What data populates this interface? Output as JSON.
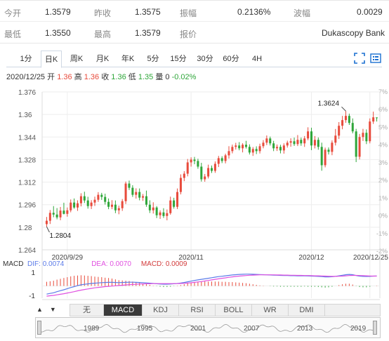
{
  "quote": {
    "rows": [
      [
        {
          "label": "今开",
          "value": "1.3579"
        },
        {
          "label": "昨收",
          "value": "1.3575"
        },
        {
          "label": "振幅",
          "value": "0.2136%"
        },
        {
          "label": "波幅",
          "value": "0.0029"
        }
      ],
      [
        {
          "label": "最低",
          "value": "1.3550"
        },
        {
          "label": "最高",
          "value": "1.3579"
        },
        {
          "label": "报价",
          "value": "Dukascopy Bank"
        }
      ]
    ]
  },
  "period_tabs": [
    "1分",
    "日K",
    "周K",
    "月K",
    "年K",
    "5分",
    "15分",
    "30分",
    "60分",
    "4H"
  ],
  "active_period": "日K",
  "icons": [
    "fullscreen-icon",
    "settings-icon"
  ],
  "info_line": {
    "date": "2020/12/25",
    "open_label": "开",
    "open": "1.36",
    "high_label": "高",
    "high": "1.36",
    "close_label": "收",
    "close": "1.36",
    "low_label": "低",
    "low": "1.35",
    "volume_label": "量",
    "volume": "0",
    "change": "-0.02%"
  },
  "macd_header": {
    "name": "MACD",
    "dif_label": "DIF:",
    "dif": "0.0074",
    "dea_label": "DEA:",
    "dea": "0.0070",
    "macd_label": "MACD:",
    "macd": "0.0009"
  },
  "indicator_tabs": [
    "无",
    "MACD",
    "KDJ",
    "RSI",
    "BOLL",
    "WR",
    "DMI"
  ],
  "active_indicator": "MACD",
  "navigator_years": [
    "1989",
    "1995",
    "2001",
    "2007",
    "2013",
    "2019"
  ],
  "colors": {
    "up": "#e84b3c",
    "down": "#2fa63a",
    "dif": "#5b7be8",
    "dea": "#e050e0",
    "accent": "#1a6fd1"
  },
  "chart_data": [
    {
      "type": "candlestick",
      "title": "",
      "y_ticks": [
        "1.376",
        "1.36",
        "1.344",
        "1.328",
        "1.312",
        "1.296",
        "1.28",
        "1.264"
      ],
      "ylim": [
        1.264,
        1.376
      ],
      "right_axis_ticks": [
        "7%",
        "6%",
        "5%",
        "4%",
        "3%",
        "2%",
        "1%",
        "0%",
        "-1%",
        "-2%"
      ],
      "x_ticks": [
        "2020/9/29",
        "2020/11",
        "2020/12",
        "2020/12/25"
      ],
      "x_tick_index": [
        6,
        42,
        77,
        94
      ],
      "annotations": [
        {
          "text": "1.2804",
          "index": 0,
          "price": 1.2804
        },
        {
          "text": "1.3624",
          "index": 87,
          "price": 1.3624
        }
      ],
      "grid": true,
      "candles": [
        [
          1.2822,
          1.2873,
          1.2804,
          1.2846
        ],
        [
          1.2846,
          1.2922,
          1.2823,
          1.2902
        ],
        [
          1.2902,
          1.295,
          1.2871,
          1.289
        ],
        [
          1.289,
          1.2936,
          1.2856,
          1.287
        ],
        [
          1.287,
          1.2944,
          1.285,
          1.2918
        ],
        [
          1.2918,
          1.2974,
          1.2891,
          1.2895
        ],
        [
          1.2895,
          1.294,
          1.2875,
          1.292
        ],
        [
          1.292,
          1.2997,
          1.2906,
          1.2975
        ],
        [
          1.2975,
          1.3004,
          1.2931,
          1.294
        ],
        [
          1.294,
          1.2991,
          1.2916,
          1.297
        ],
        [
          1.297,
          1.3041,
          1.2948,
          1.302
        ],
        [
          1.302,
          1.3052,
          1.2972,
          1.299
        ],
        [
          1.299,
          1.3016,
          1.2932,
          1.295
        ],
        [
          1.295,
          1.2992,
          1.2929,
          1.2975
        ],
        [
          1.2975,
          1.3017,
          1.2951,
          1.2995
        ],
        [
          1.2995,
          1.3049,
          1.298,
          1.303
        ],
        [
          1.303,
          1.3044,
          1.2994,
          1.3015
        ],
        [
          1.3015,
          1.3038,
          1.2961,
          1.298
        ],
        [
          1.298,
          1.3004,
          1.2928,
          1.2945
        ],
        [
          1.2945,
          1.2992,
          1.2928,
          1.296
        ],
        [
          1.296,
          1.299,
          1.29,
          1.292
        ],
        [
          1.292,
          1.2953,
          1.2892,
          1.2935
        ],
        [
          1.2935,
          1.3,
          1.2916,
          1.2985
        ],
        [
          1.2985,
          1.3124,
          1.2965,
          1.311
        ],
        [
          1.311,
          1.3131,
          1.3064,
          1.308
        ],
        [
          1.308,
          1.3098,
          1.3015,
          1.303
        ],
        [
          1.303,
          1.3076,
          1.3003,
          1.305
        ],
        [
          1.305,
          1.3075,
          1.2991,
          1.301
        ],
        [
          1.301,
          1.3036,
          1.2987,
          1.302
        ],
        [
          1.302,
          1.306,
          1.2945,
          1.296
        ],
        [
          1.296,
          1.2991,
          1.2901,
          1.292
        ],
        [
          1.292,
          1.2977,
          1.2897,
          1.294
        ],
        [
          1.294,
          1.295,
          1.2865,
          1.2885
        ],
        [
          1.2885,
          1.292,
          1.2859,
          1.2905
        ],
        [
          1.2905,
          1.2935,
          1.2866,
          1.288
        ],
        [
          1.288,
          1.2926,
          1.2849,
          1.29
        ],
        [
          1.29,
          1.3017,
          1.2889,
          1.299
        ],
        [
          1.299,
          1.3009,
          1.2932,
          1.2945
        ],
        [
          1.2945,
          1.3075,
          1.2929,
          1.305
        ],
        [
          1.305,
          1.3175,
          1.3033,
          1.315
        ],
        [
          1.315,
          1.3198,
          1.3127,
          1.318
        ],
        [
          1.318,
          1.3284,
          1.3161,
          1.326
        ],
        [
          1.326,
          1.3296,
          1.323,
          1.328
        ],
        [
          1.328,
          1.3299,
          1.3247,
          1.327
        ],
        [
          1.327,
          1.3286,
          1.3215,
          1.323
        ],
        [
          1.323,
          1.3257,
          1.3124,
          1.314
        ],
        [
          1.314,
          1.3178,
          1.3123,
          1.316
        ],
        [
          1.316,
          1.3244,
          1.3146,
          1.322
        ],
        [
          1.322,
          1.3238,
          1.3185,
          1.32
        ],
        [
          1.32,
          1.3267,
          1.3186,
          1.325
        ],
        [
          1.325,
          1.3306,
          1.3227,
          1.329
        ],
        [
          1.329,
          1.3304,
          1.3255,
          1.327
        ],
        [
          1.327,
          1.3322,
          1.3253,
          1.331
        ],
        [
          1.331,
          1.3375,
          1.3287,
          1.334
        ],
        [
          1.334,
          1.3386,
          1.3324,
          1.337
        ],
        [
          1.337,
          1.3399,
          1.3351,
          1.338
        ],
        [
          1.338,
          1.3404,
          1.3346,
          1.336
        ],
        [
          1.336,
          1.3396,
          1.3331,
          1.3385
        ],
        [
          1.3385,
          1.3413,
          1.3358,
          1.337
        ],
        [
          1.337,
          1.3388,
          1.3316,
          1.333
        ],
        [
          1.333,
          1.3369,
          1.3306,
          1.3355
        ],
        [
          1.3355,
          1.3374,
          1.3319,
          1.334
        ],
        [
          1.334,
          1.3393,
          1.3323,
          1.3375
        ],
        [
          1.3375,
          1.3418,
          1.336,
          1.34
        ],
        [
          1.34,
          1.3451,
          1.3383,
          1.343
        ],
        [
          1.343,
          1.3443,
          1.338,
          1.3395
        ],
        [
          1.3395,
          1.3413,
          1.334,
          1.336
        ],
        [
          1.336,
          1.3387,
          1.3341,
          1.337
        ],
        [
          1.337,
          1.3385,
          1.3324,
          1.3345
        ],
        [
          1.3345,
          1.3395,
          1.3322,
          1.338
        ],
        [
          1.338,
          1.3414,
          1.3365,
          1.34
        ],
        [
          1.34,
          1.3431,
          1.3371,
          1.341
        ],
        [
          1.341,
          1.3436,
          1.3377,
          1.339
        ],
        [
          1.339,
          1.3454,
          1.3376,
          1.342
        ],
        [
          1.342,
          1.3436,
          1.3378,
          1.3395
        ],
        [
          1.3395,
          1.3447,
          1.337,
          1.343
        ],
        [
          1.343,
          1.3509,
          1.3417,
          1.348
        ],
        [
          1.348,
          1.3506,
          1.3347,
          1.338
        ],
        [
          1.338,
          1.3447,
          1.3359,
          1.342
        ],
        [
          1.342,
          1.3437,
          1.335,
          1.337
        ],
        [
          1.337,
          1.34,
          1.3201,
          1.324
        ],
        [
          1.324,
          1.3365,
          1.3225,
          1.335
        ],
        [
          1.335,
          1.3366,
          1.3316,
          1.3335
        ],
        [
          1.3335,
          1.3416,
          1.3311,
          1.34
        ],
        [
          1.34,
          1.3497,
          1.338,
          1.345
        ],
        [
          1.345,
          1.3546,
          1.3426,
          1.352
        ],
        [
          1.352,
          1.359,
          1.3495,
          1.356
        ],
        [
          1.356,
          1.3624,
          1.3541,
          1.359
        ],
        [
          1.359,
          1.3606,
          1.3526,
          1.354
        ],
        [
          1.354,
          1.3572,
          1.3466,
          1.348
        ],
        [
          1.348,
          1.3498,
          1.3262,
          1.33
        ],
        [
          1.33,
          1.3462,
          1.3281,
          1.344
        ],
        [
          1.344,
          1.3498,
          1.3412,
          1.347
        ],
        [
          1.347,
          1.3494,
          1.339,
          1.341
        ],
        [
          1.341,
          1.3572,
          1.3395,
          1.355
        ],
        [
          1.355,
          1.362,
          1.3533,
          1.358
        ],
        [
          1.3579,
          1.3579,
          1.355,
          1.3576
        ]
      ]
    },
    {
      "type": "bar+line",
      "title": "MACD",
      "y_ticks": [
        "1",
        "-1"
      ],
      "series": [
        {
          "name": "DIF",
          "values": [
            -0.6,
            -0.55,
            -0.5,
            -0.42,
            -0.35,
            -0.28,
            -0.2,
            -0.12,
            -0.05,
            0.02,
            0.08,
            0.12,
            0.15,
            0.18,
            0.2,
            0.22,
            0.24,
            0.25,
            0.26,
            0.26,
            0.25,
            0.24,
            0.25,
            0.26,
            0.27,
            0.27,
            0.26,
            0.25,
            0.24,
            0.22,
            0.2,
            0.18,
            0.16,
            0.14,
            0.13,
            0.13,
            0.14,
            0.16,
            0.18,
            0.21,
            0.25,
            0.3,
            0.35,
            0.4,
            0.44,
            0.48,
            0.52,
            0.56,
            0.6,
            0.64,
            0.68,
            0.71,
            0.74,
            0.77,
            0.8,
            0.82,
            0.84,
            0.85,
            0.86,
            0.86,
            0.85,
            0.84,
            0.83,
            0.82,
            0.81,
            0.8,
            0.79,
            0.78,
            0.77,
            0.76,
            0.76,
            0.75,
            0.75,
            0.74,
            0.74,
            0.74,
            0.73,
            0.72,
            0.71,
            0.7,
            0.68,
            0.66,
            0.66,
            0.67,
            0.7,
            0.74,
            0.78,
            0.82,
            0.84,
            0.82,
            0.76,
            0.72,
            0.7,
            0.69,
            0.7,
            0.72,
            0.73
          ]
        },
        {
          "name": "DEA",
          "values": [
            -0.75,
            -0.72,
            -0.69,
            -0.65,
            -0.61,
            -0.57,
            -0.52,
            -0.47,
            -0.42,
            -0.36,
            -0.31,
            -0.26,
            -0.22,
            -0.18,
            -0.14,
            -0.11,
            -0.08,
            -0.05,
            -0.03,
            -0.01,
            0.01,
            0.03,
            0.05,
            0.07,
            0.09,
            0.11,
            0.12,
            0.14,
            0.15,
            0.16,
            0.16,
            0.17,
            0.17,
            0.17,
            0.17,
            0.17,
            0.17,
            0.17,
            0.17,
            0.18,
            0.19,
            0.21,
            0.23,
            0.26,
            0.29,
            0.32,
            0.36,
            0.4,
            0.44,
            0.48,
            0.52,
            0.56,
            0.59,
            0.63,
            0.66,
            0.69,
            0.72,
            0.74,
            0.76,
            0.78,
            0.79,
            0.8,
            0.81,
            0.81,
            0.81,
            0.81,
            0.81,
            0.8,
            0.8,
            0.79,
            0.79,
            0.78,
            0.78,
            0.77,
            0.77,
            0.76,
            0.76,
            0.75,
            0.74,
            0.74,
            0.73,
            0.72,
            0.71,
            0.7,
            0.7,
            0.71,
            0.72,
            0.74,
            0.76,
            0.77,
            0.77,
            0.76,
            0.75,
            0.74,
            0.73,
            0.72,
            0.72
          ]
        }
      ]
    }
  ]
}
